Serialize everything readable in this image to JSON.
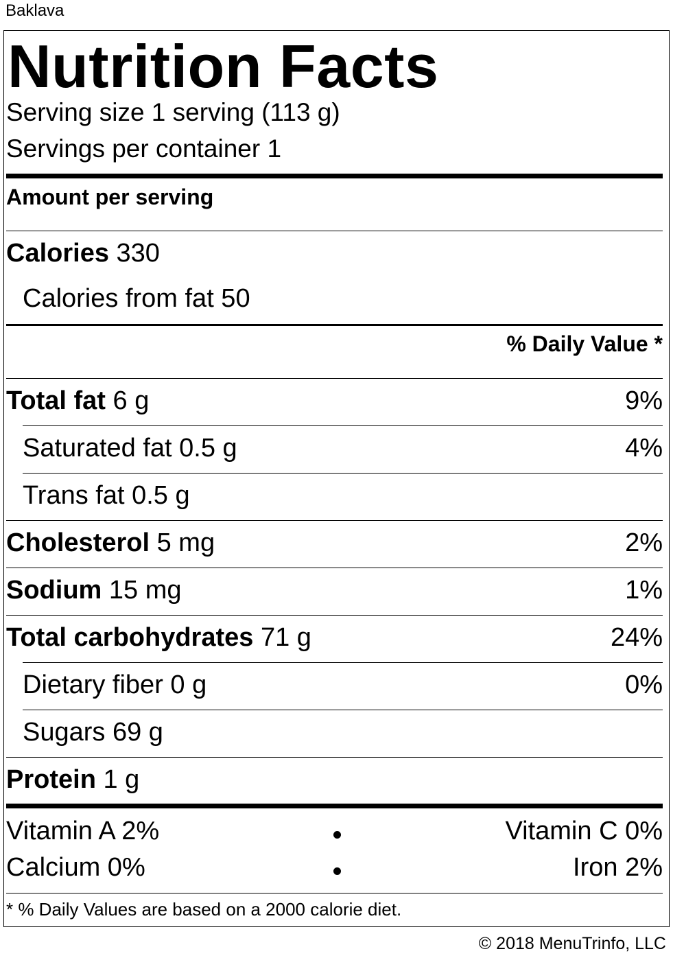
{
  "food_name": "Baklava",
  "title": "Nutrition Facts",
  "serving_size": "Serving size 1 serving (113 g)",
  "servings_per_container": "Servings per container 1",
  "amount_per_serving": "Amount per serving",
  "calories": {
    "label": "Calories",
    "value": "330"
  },
  "calories_from_fat": "Calories from fat 50",
  "daily_value_header": "% Daily Value *",
  "nutrients": [
    {
      "label": "Total fat",
      "amount": "6 g",
      "dv": "9%"
    },
    {
      "label": "Saturated fat",
      "amount": "0.5 g",
      "dv": "4%"
    },
    {
      "label": "Trans fat",
      "amount": "0.5 g",
      "dv": ""
    },
    {
      "label": "Cholesterol",
      "amount": "5 mg",
      "dv": "2%"
    },
    {
      "label": "Sodium",
      "amount": "15 mg",
      "dv": "1%"
    },
    {
      "label": "Total carbohydrates",
      "amount": "71 g",
      "dv": "24%"
    },
    {
      "label": "Dietary fiber",
      "amount": "0 g",
      "dv": "0%"
    },
    {
      "label": "Sugars",
      "amount": "69 g",
      "dv": ""
    },
    {
      "label": "Protein",
      "amount": "1 g",
      "dv": ""
    }
  ],
  "vitamins": {
    "vitamin_a": "Vitamin A 2%",
    "vitamin_c": "Vitamin C 0%",
    "calcium": "Calcium 0%",
    "iron": "Iron 2%"
  },
  "footnote": "* % Daily Values are based on a 2000 calorie diet.",
  "copyright": "© 2018 MenuTrinfo, LLC"
}
